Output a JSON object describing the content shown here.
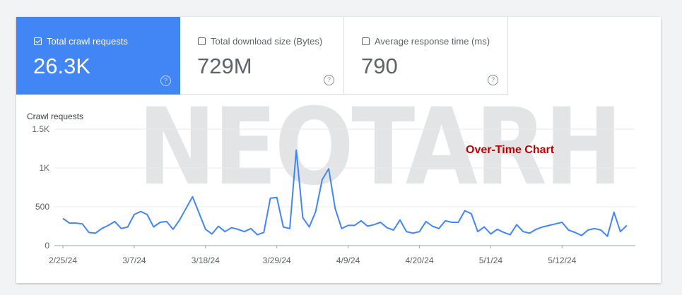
{
  "metrics": [
    {
      "label": "Total crawl requests",
      "value": "26.3K",
      "checked": true,
      "help": "?"
    },
    {
      "label": "Total download size (Bytes)",
      "value": "729M",
      "checked": false,
      "help": "?"
    },
    {
      "label": "Average response time (ms)",
      "value": "790",
      "checked": false,
      "help": "?"
    }
  ],
  "watermark": "NEOTARH",
  "annotation": "Over-Time Chart",
  "colors": {
    "accent": "#4285f4",
    "line": "#4285f4",
    "annotation": "#c00000"
  },
  "chart_data": {
    "type": "line",
    "title": "",
    "ylabel": "Crawl requests",
    "xlabel": "",
    "ylim": [
      0,
      1500
    ],
    "yticks": [
      0,
      500,
      1000,
      1500
    ],
    "ytick_labels": [
      "0",
      "500",
      "1K",
      "1.5K"
    ],
    "x_start": "2/25/24",
    "x_end": "5/24/24",
    "xtick_labels": [
      "2/25/24",
      "3/7/24",
      "3/18/24",
      "3/29/24",
      "4/9/24",
      "4/20/24",
      "5/1/24",
      "5/12/24"
    ],
    "grid": true,
    "series": [
      {
        "values": [
          350,
          290,
          290,
          280,
          170,
          160,
          220,
          260,
          310,
          220,
          240,
          400,
          440,
          400,
          240,
          300,
          310,
          210,
          330,
          480,
          630,
          420,
          210,
          150,
          250,
          180,
          230,
          210,
          180,
          220,
          140,
          170,
          610,
          620,
          240,
          220,
          1230,
          360,
          240,
          440,
          850,
          990,
          480,
          220,
          260,
          260,
          320,
          250,
          270,
          300,
          230,
          200,
          330,
          180,
          160,
          180,
          310,
          250,
          220,
          320,
          300,
          300,
          450,
          410,
          180,
          240,
          150,
          210,
          170,
          140,
          270,
          180,
          160,
          210,
          240,
          260,
          280,
          300,
          200,
          170,
          130,
          200,
          220,
          200,
          120,
          430,
          180,
          260
        ]
      }
    ]
  }
}
